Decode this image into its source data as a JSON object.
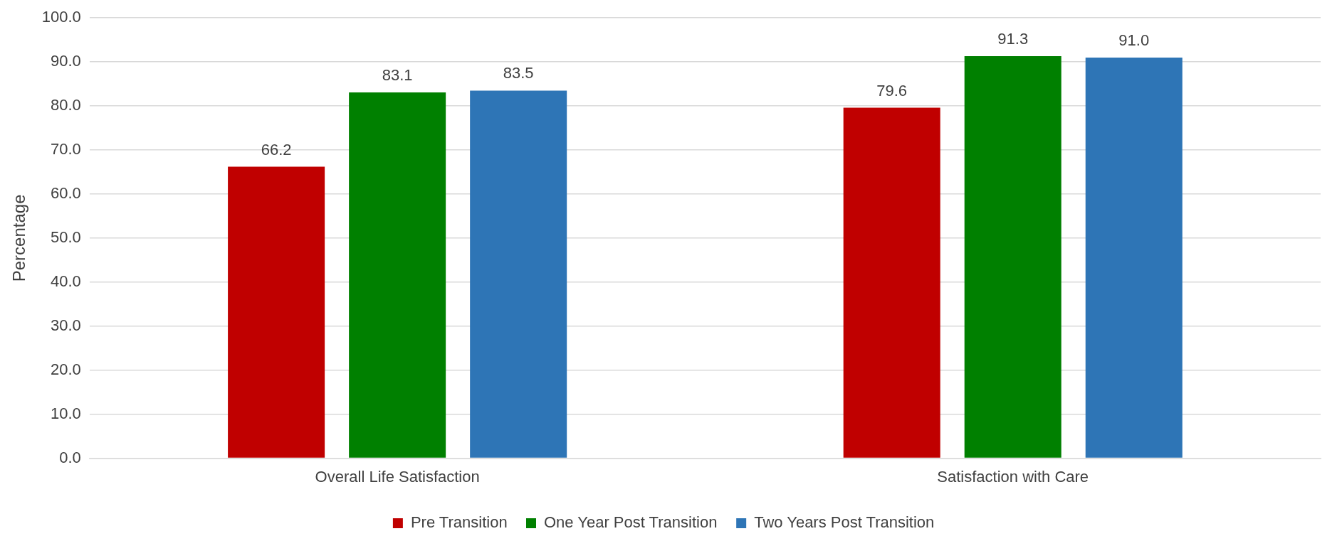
{
  "chart_data": {
    "type": "bar",
    "ylabel": "Percentage",
    "categories": [
      "Overall Life Satisfaction",
      "Satisfaction with Care"
    ],
    "series": [
      {
        "name": "Pre Transition",
        "color": "#c00000",
        "values": [
          66.2,
          79.6
        ],
        "value_labels": [
          "66.2",
          "79.6"
        ]
      },
      {
        "name": "One Year Post Transition",
        "color": "#008000",
        "values": [
          83.1,
          91.3
        ],
        "value_labels": [
          "83.1",
          "91.3"
        ]
      },
      {
        "name": "Two Years Post Transition",
        "color": "#2e75b6",
        "values": [
          83.5,
          91.0
        ],
        "value_labels": [
          "83.5",
          "91.0"
        ]
      }
    ],
    "ylim": [
      0,
      100
    ],
    "yticks": [
      {
        "value": 0,
        "label": "0.0"
      },
      {
        "value": 10,
        "label": "10.0"
      },
      {
        "value": 20,
        "label": "20.0"
      },
      {
        "value": 30,
        "label": "30.0"
      },
      {
        "value": 40,
        "label": "40.0"
      },
      {
        "value": 50,
        "label": "50.0"
      },
      {
        "value": 60,
        "label": "60.0"
      },
      {
        "value": 70,
        "label": "70.0"
      },
      {
        "value": 80,
        "label": "80.0"
      },
      {
        "value": 90,
        "label": "90.0"
      },
      {
        "value": 100,
        "label": "100.0"
      }
    ],
    "grid": "y",
    "legend": "bottom"
  }
}
